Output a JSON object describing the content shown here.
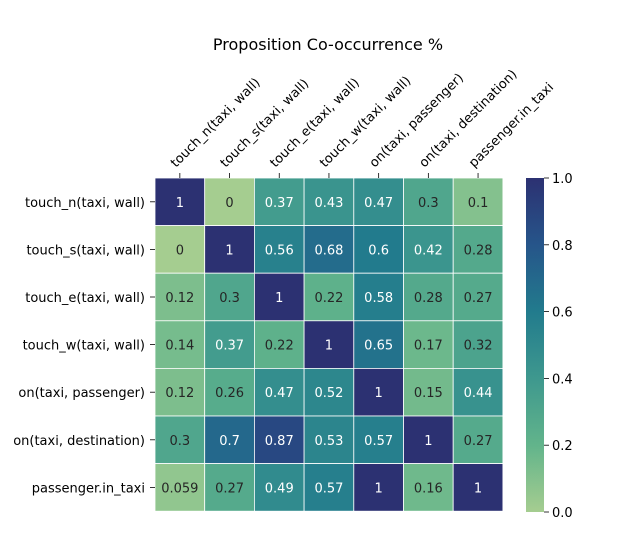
{
  "chart_data": {
    "type": "heatmap",
    "title": "Proposition Co-occurrence %",
    "x_labels": [
      "touch_n(taxi, wall)",
      "touch_s(taxi, wall)",
      "touch_e(taxi, wall)",
      "touch_w(taxi, wall)",
      "on(taxi, passenger)",
      "on(taxi, destination)",
      "passenger.in_taxi"
    ],
    "y_labels": [
      "touch_n(taxi, wall)",
      "touch_s(taxi, wall)",
      "touch_e(taxi, wall)",
      "touch_w(taxi, wall)",
      "on(taxi, passenger)",
      "on(taxi, destination)",
      "passenger.in_taxi"
    ],
    "values": [
      [
        "1",
        "0",
        "0.37",
        "0.43",
        "0.47",
        "0.3",
        "0.1"
      ],
      [
        "0",
        "1",
        "0.56",
        "0.68",
        "0.6",
        "0.42",
        "0.28"
      ],
      [
        "0.12",
        "0.3",
        "1",
        "0.22",
        "0.58",
        "0.28",
        "0.27"
      ],
      [
        "0.14",
        "0.37",
        "0.22",
        "1",
        "0.65",
        "0.17",
        "0.32"
      ],
      [
        "0.12",
        "0.26",
        "0.47",
        "0.52",
        "1",
        "0.15",
        "0.44"
      ],
      [
        "0.3",
        "0.7",
        "0.87",
        "0.53",
        "0.57",
        "1",
        "0.27"
      ],
      [
        "0.059",
        "0.27",
        "0.49",
        "0.57",
        "1",
        "0.16",
        "1"
      ]
    ],
    "colorbar": {
      "range": [
        0,
        1
      ],
      "ticks": [
        "0.0",
        "0.2",
        "0.4",
        "0.6",
        "0.8",
        "1.0"
      ],
      "colormap": "crest",
      "low_color": "#a5cd90",
      "high_color": "#2c3172"
    },
    "grid": "white cell borders",
    "x_labels_position": "top, rotated 45°"
  }
}
